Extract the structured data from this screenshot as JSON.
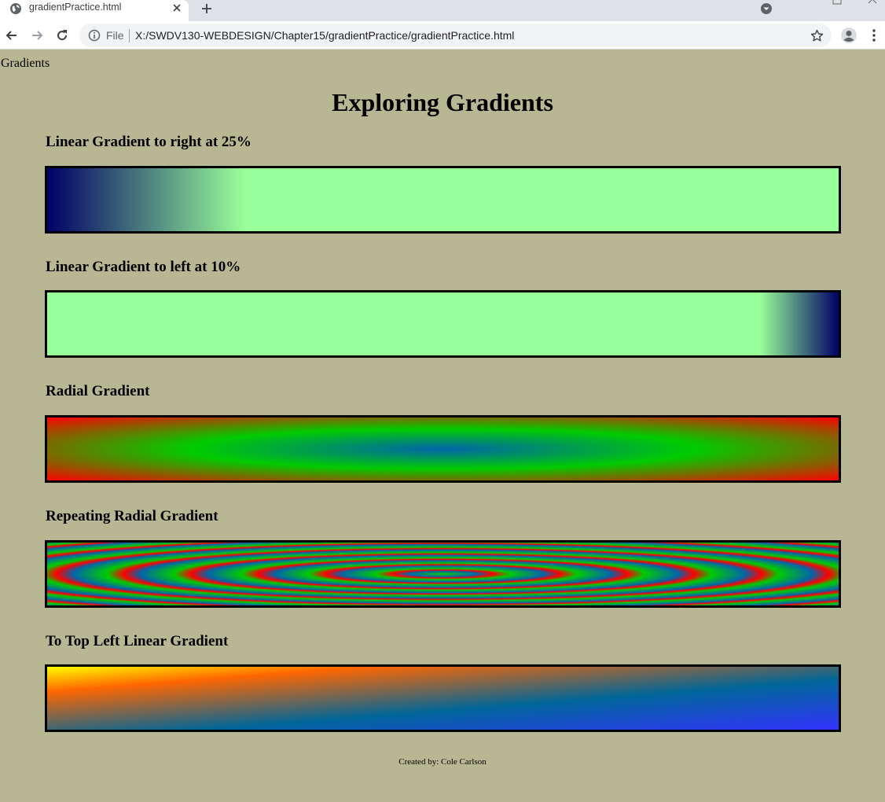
{
  "browser": {
    "tab_title": "gradientPractice.html",
    "omnibox": {
      "scheme_label": "File",
      "url": "X:/SWDV130-WEBDESIGN/Chapter15/gradientPractice/gradientPractice.html"
    }
  },
  "page": {
    "header": "Gradients",
    "title": "Exploring Gradients",
    "sections": [
      {
        "heading": "Linear Gradient to right at 25%"
      },
      {
        "heading": "Linear Gradient to left at 10%"
      },
      {
        "heading": "Radial Gradient"
      },
      {
        "heading": "Repeating Radial Gradient"
      },
      {
        "heading": "To Top Left Linear Gradient"
      }
    ],
    "footer": "Created by: Cole Carlson"
  },
  "colors": {
    "page_background": "#b8b794",
    "navy": "#000066",
    "light_green": "#99ff99",
    "green": "#00cc00",
    "blue": "#0066aa",
    "red": "#ff0000",
    "bright_blue": "#3333ff",
    "orange": "#ff6600",
    "yellow": "#ffff00"
  }
}
